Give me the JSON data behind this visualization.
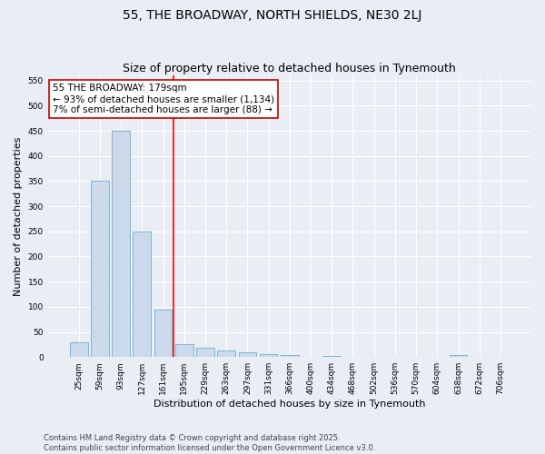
{
  "title": "55, THE BROADWAY, NORTH SHIELDS, NE30 2LJ",
  "subtitle": "Size of property relative to detached houses in Tynemouth",
  "xlabel": "Distribution of detached houses by size in Tynemouth",
  "ylabel": "Number of detached properties",
  "categories": [
    "25sqm",
    "59sqm",
    "93sqm",
    "127sqm",
    "161sqm",
    "195sqm",
    "229sqm",
    "263sqm",
    "297sqm",
    "331sqm",
    "366sqm",
    "400sqm",
    "434sqm",
    "468sqm",
    "502sqm",
    "536sqm",
    "570sqm",
    "604sqm",
    "638sqm",
    "672sqm",
    "706sqm"
  ],
  "values": [
    30,
    350,
    450,
    250,
    95,
    25,
    18,
    13,
    10,
    5,
    4,
    0,
    3,
    0,
    0,
    0,
    0,
    0,
    4,
    0,
    0
  ],
  "bar_color": "#ccdaeb",
  "bar_edge_color": "#6baed6",
  "red_line_index": 4.5,
  "annotation_line1": "55 THE BROADWAY: 179sqm",
  "annotation_line2": "← 93% of detached houses are smaller (1,134)",
  "annotation_line3": "7% of semi-detached houses are larger (88) →",
  "annotation_box_color": "#ffffff",
  "annotation_box_edge": "#cc0000",
  "ylim": [
    0,
    560
  ],
  "yticks": [
    0,
    50,
    100,
    150,
    200,
    250,
    300,
    350,
    400,
    450,
    500,
    550
  ],
  "footer_text": "Contains HM Land Registry data © Crown copyright and database right 2025.\nContains public sector information licensed under the Open Government Licence v3.0.",
  "bg_color": "#e8eef4",
  "plot_bg_color": "#e8eef4",
  "title_fontsize": 10,
  "subtitle_fontsize": 9,
  "axis_label_fontsize": 8,
  "tick_fontsize": 6.5,
  "footer_fontsize": 6,
  "annotation_fontsize": 7.5
}
